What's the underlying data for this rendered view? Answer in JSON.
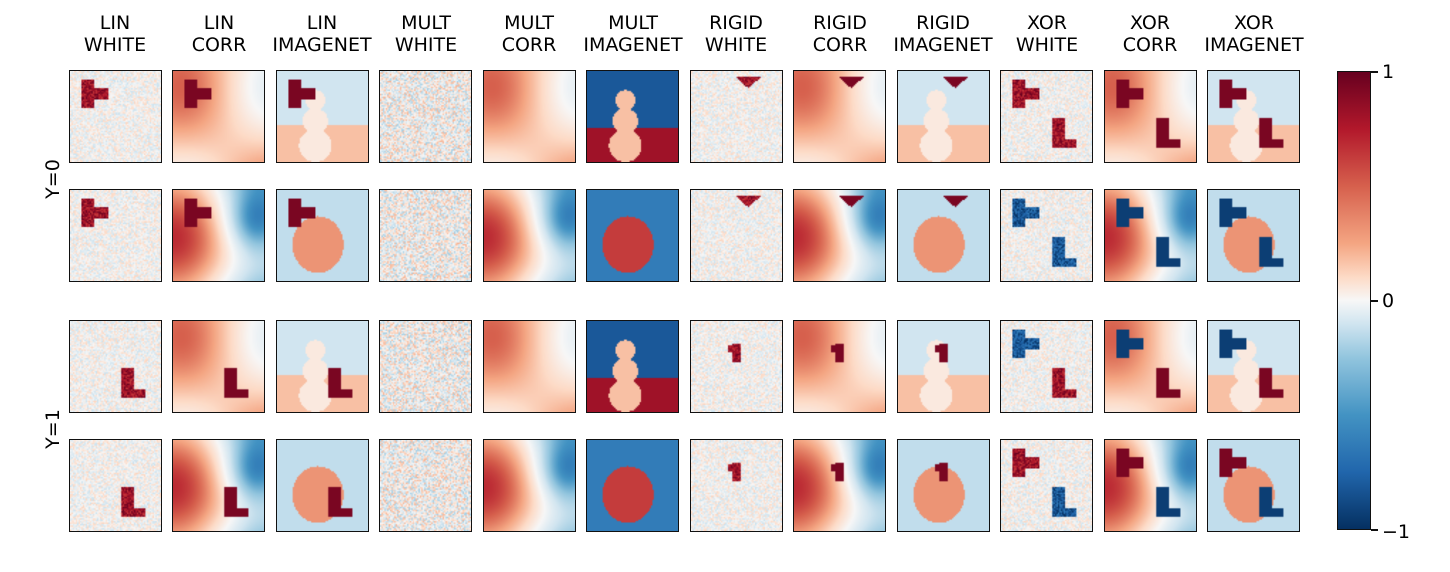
{
  "columns": [
    {
      "id": "lin-white",
      "label": "LIN\nWHITE"
    },
    {
      "id": "lin-corr",
      "label": "LIN\nCORR"
    },
    {
      "id": "lin-imagenet",
      "label": "LIN\nIMAGENET"
    },
    {
      "id": "mult-white",
      "label": "MULT\nWHITE"
    },
    {
      "id": "mult-corr",
      "label": "MULT\nCORR"
    },
    {
      "id": "mult-imagenet",
      "label": "MULT\nIMAGENET"
    },
    {
      "id": "rigid-white",
      "label": "RIGID\nWHITE"
    },
    {
      "id": "rigid-corr",
      "label": "RIGID\nCORR"
    },
    {
      "id": "rigid-imagenet",
      "label": "RIGID\nIMAGENET"
    },
    {
      "id": "xor-white",
      "label": "XOR\nWHITE"
    },
    {
      "id": "xor-corr",
      "label": "XOR\nCORR"
    },
    {
      "id": "xor-imagenet",
      "label": "XOR\nIMAGENET"
    }
  ],
  "row_groups": [
    {
      "label": "Y=0"
    },
    {
      "label": "Y=1"
    }
  ],
  "colorbar": {
    "colormap": "RdBu_r",
    "max_label": "1",
    "mid_label": "0",
    "min_label": "−1",
    "colors": [
      "#67001f",
      "#b2182b",
      "#d6604d",
      "#f4a582",
      "#fddbc7",
      "#f7f7f7",
      "#d1e5f0",
      "#92c5de",
      "#4393c3",
      "#2166ac",
      "#053061"
    ]
  }
}
